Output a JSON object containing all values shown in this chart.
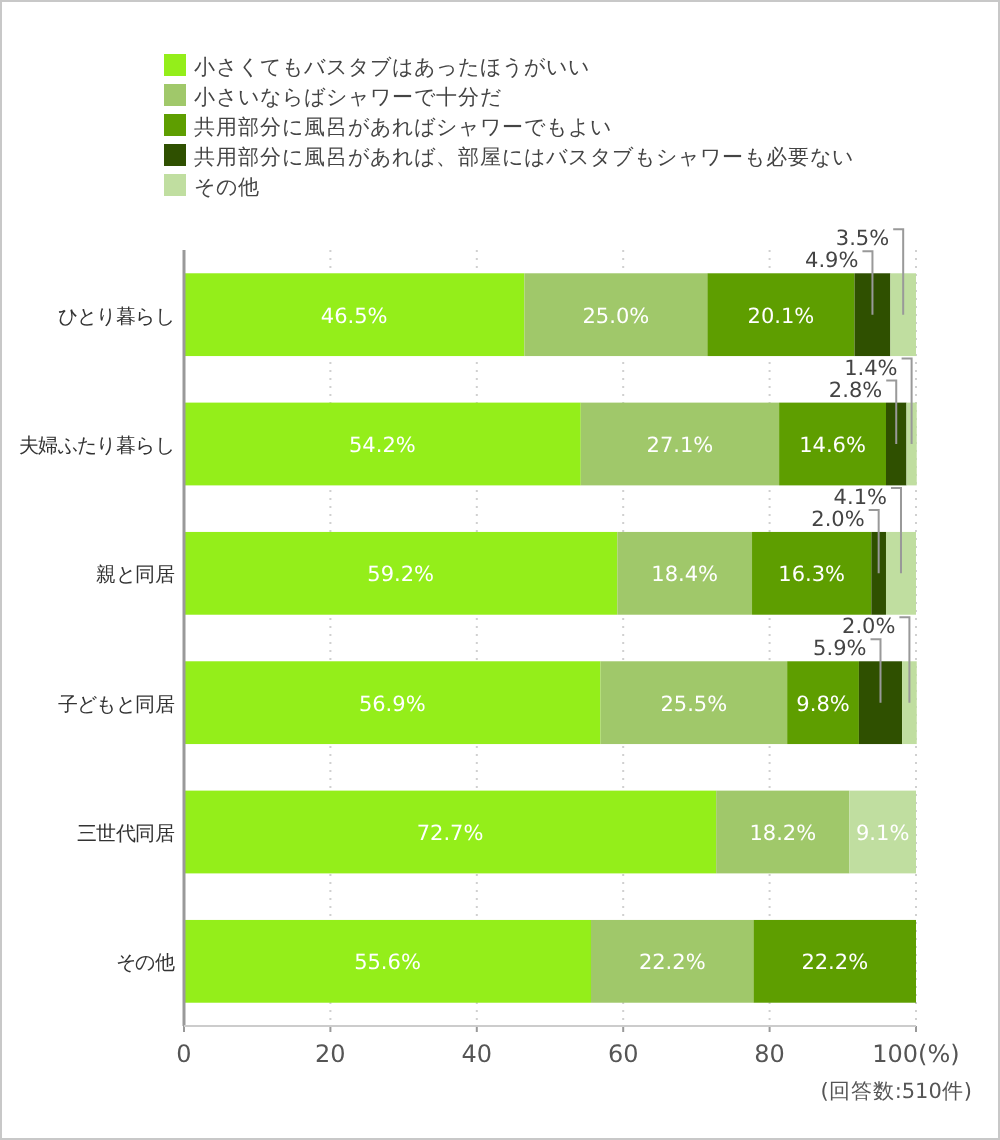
{
  "chart_data": {
    "type": "bar",
    "orientation": "horizontal",
    "stacked": true,
    "categories": [
      "ひとり暮らし",
      "夫婦ふたり暮らし",
      "親と同居",
      "子どもと同居",
      "三世代同居",
      "その他"
    ],
    "series": [
      {
        "name": "小さくてもバスタブはあったほうがいい",
        "color": "#94ee1a",
        "values": [
          46.5,
          54.2,
          59.2,
          56.9,
          72.7,
          55.6
        ],
        "value_labels": [
          "46.5%",
          "54.2%",
          "59.2%",
          "56.9%",
          "72.7%",
          "55.6%"
        ]
      },
      {
        "name": "小さいならばシャワーで十分だ",
        "color": "#a0c86a",
        "values": [
          25.0,
          27.1,
          18.4,
          25.5,
          18.2,
          22.2
        ],
        "value_labels": [
          "25.0%",
          "27.1%",
          "18.4%",
          "25.5%",
          "18.2%",
          "22.2%"
        ]
      },
      {
        "name": "共用部分に風呂があればシャワーでもよい",
        "color": "#5e9e00",
        "values": [
          20.1,
          14.6,
          16.3,
          9.8,
          null,
          22.2
        ],
        "value_labels": [
          "20.1%",
          "14.6%",
          "16.3%",
          "9.8%",
          null,
          "22.2%"
        ]
      },
      {
        "name": "共用部分に風呂があれば、部屋にはバスタブもシャワーも必要ない",
        "color": "#2f5000",
        "values": [
          4.9,
          2.8,
          2.0,
          5.9,
          null,
          null
        ],
        "value_labels": [
          "4.9%",
          "2.8%",
          "2.0%",
          "5.9%",
          null,
          null
        ]
      },
      {
        "name": "その他",
        "color": "#c0dea0",
        "values": [
          3.5,
          1.4,
          4.1,
          2.0,
          9.1,
          null
        ],
        "value_labels": [
          "3.5%",
          "1.4%",
          "4.1%",
          "2.0%",
          "9.1%",
          null
        ]
      }
    ],
    "xlim": [
      0,
      100
    ],
    "xticks": [
      0,
      20,
      40,
      60,
      80,
      {
        "value": 100,
        "label": "100(%)"
      }
    ],
    "grid": "x",
    "legend": "top",
    "annotations": [
      "(回答数:510件)"
    ]
  }
}
